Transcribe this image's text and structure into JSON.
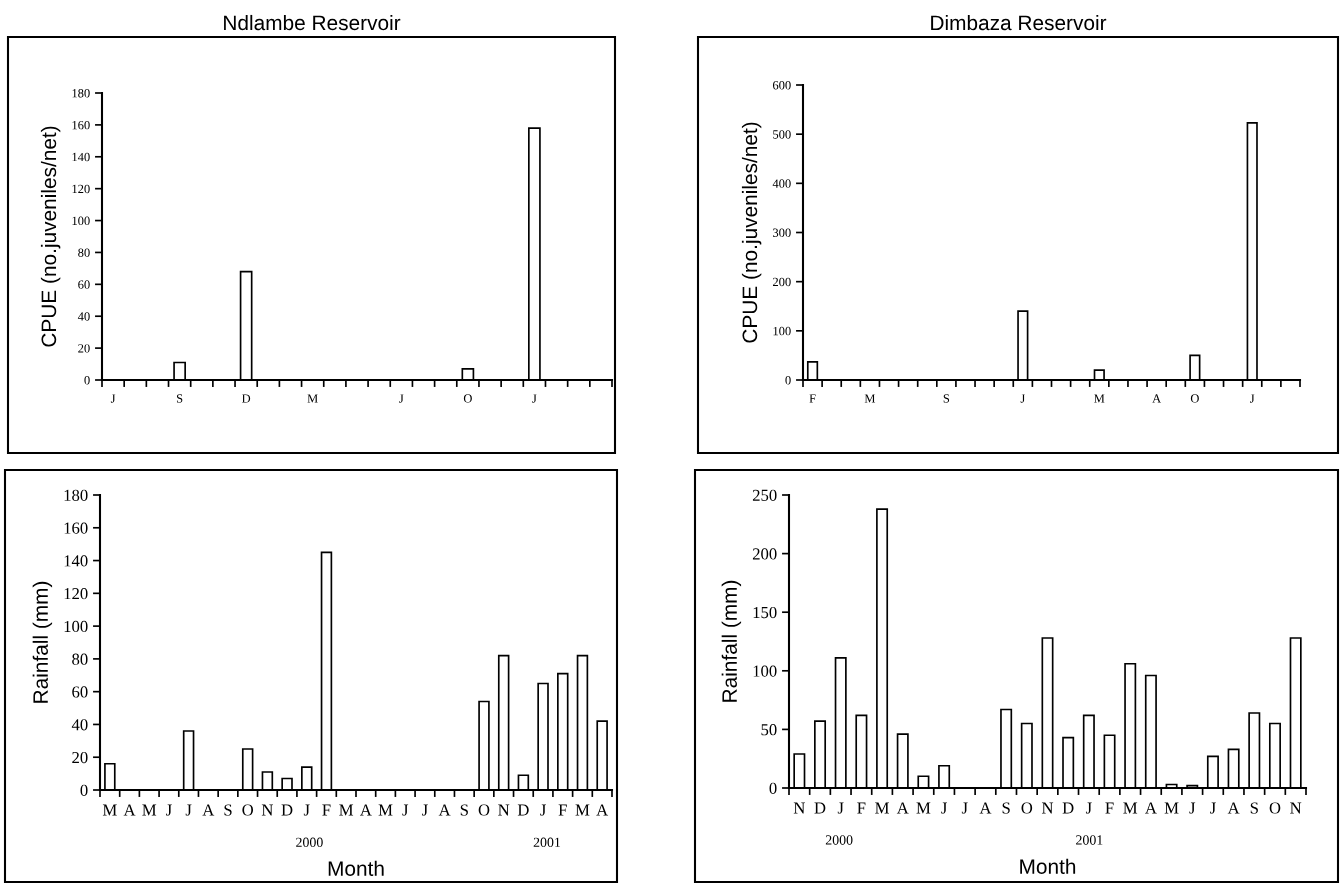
{
  "chart_data": [
    {
      "type": "bar",
      "title": "Ndlambe Reservoir",
      "ylabel": "CPUE (no.juveniles/net)",
      "categories": [
        "J",
        null,
        null,
        "S",
        null,
        null,
        "D",
        null,
        null,
        "M",
        null,
        null,
        null,
        "J",
        null,
        null,
        "O",
        null,
        null,
        "J",
        null,
        null,
        null
      ],
      "values": [
        null,
        null,
        null,
        11,
        null,
        null,
        68,
        null,
        null,
        null,
        null,
        null,
        null,
        null,
        null,
        null,
        7,
        null,
        null,
        158,
        null,
        null,
        null
      ],
      "color": "#ffffff",
      "ylim": [
        0,
        180
      ],
      "yticks": [
        0,
        20,
        40,
        60,
        80,
        100,
        120,
        140,
        160,
        180
      ],
      "grid": false
    },
    {
      "type": "bar",
      "title": "Dimbaza Reservoir",
      "ylabel": "CPUE (no.juveniles/net)",
      "categories": [
        "F",
        null,
        null,
        "M",
        null,
        null,
        null,
        "S",
        null,
        null,
        null,
        "J",
        null,
        null,
        null,
        "M",
        null,
        null,
        "A",
        null,
        "O",
        null,
        null,
        "J",
        null,
        null
      ],
      "values": [
        37,
        null,
        null,
        null,
        null,
        null,
        null,
        null,
        null,
        null,
        null,
        140,
        null,
        null,
        null,
        20,
        null,
        null,
        null,
        null,
        50,
        null,
        null,
        523,
        null,
        null
      ],
      "color": "#ffffff",
      "ylim": [
        0,
        600
      ],
      "yticks": [
        0,
        100,
        200,
        300,
        400,
        500,
        600
      ],
      "grid": false
    },
    {
      "type": "bar",
      "ylabel": "Rainfall (mm)",
      "xlabel": "Month",
      "categories": [
        "M",
        "A",
        "M",
        "J",
        "J",
        "A",
        "S",
        "O",
        "N",
        "D",
        "J",
        "F",
        "M",
        "A",
        "M",
        "J",
        "J",
        "A",
        "S",
        "O",
        "N",
        "D",
        "J",
        "F",
        "M",
        "A"
      ],
      "values": [
        16,
        null,
        null,
        null,
        36,
        null,
        null,
        25,
        11,
        7,
        14,
        145,
        null,
        null,
        null,
        null,
        null,
        null,
        null,
        54,
        82,
        9,
        65,
        71,
        82,
        42
      ],
      "color": "#ffffff",
      "ylim": [
        0,
        180
      ],
      "yticks": [
        0,
        20,
        40,
        60,
        80,
        100,
        120,
        140,
        160,
        180
      ],
      "grid": false,
      "annotations": [
        "2000",
        "2001"
      ]
    },
    {
      "type": "bar",
      "ylabel": "Rainfall (mm)",
      "xlabel": "Month",
      "categories": [
        "N",
        "D",
        "J",
        "F",
        "M",
        "A",
        "M",
        "J",
        "J",
        "A",
        "S",
        "O",
        "N",
        "D",
        "J",
        "F",
        "M",
        "A",
        "M",
        "J",
        "J",
        "A",
        "S",
        "O",
        "N"
      ],
      "values": [
        29,
        57,
        111,
        62,
        238,
        46,
        10,
        19,
        null,
        null,
        67,
        55,
        128,
        43,
        62,
        45,
        106,
        96,
        3,
        2,
        27,
        33,
        64,
        55,
        128
      ],
      "color": "#ffffff",
      "ylim": [
        0,
        250
      ],
      "yticks": [
        0,
        50,
        100,
        150,
        200,
        250
      ],
      "grid": false,
      "annotations": [
        "2000",
        "2001"
      ]
    }
  ]
}
